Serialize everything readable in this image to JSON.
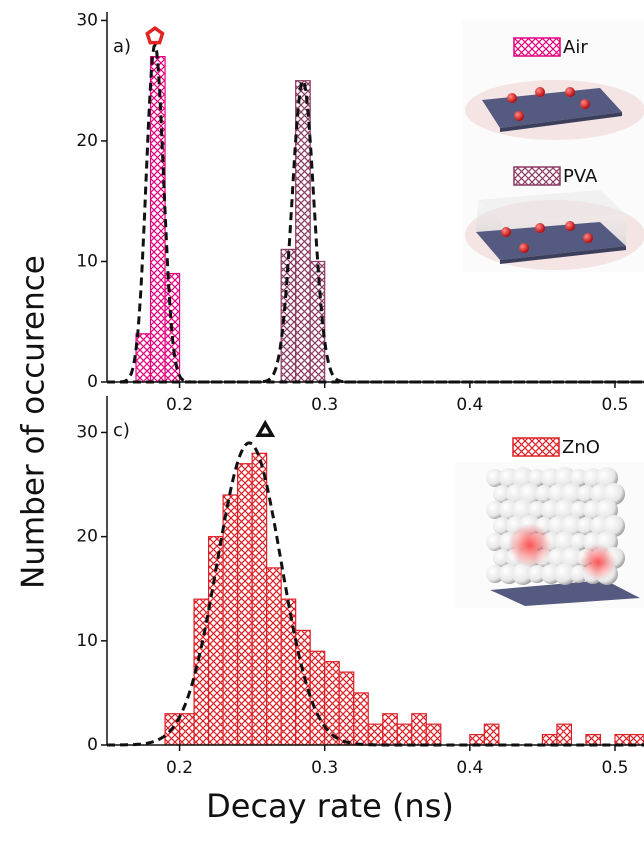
{
  "chart_data": [
    {
      "type": "histogram",
      "panel_label": "a)",
      "ylabel": "Number of occurence",
      "xlim": [
        0.15,
        0.52
      ],
      "ylim": [
        0,
        30.7
      ],
      "xticks": [
        0.2,
        0.3,
        0.4,
        0.5
      ],
      "yticks": [
        0,
        10,
        20,
        30
      ],
      "series": [
        {
          "name": "Air",
          "color": "#e5007e",
          "bins": [
            0.17,
            0.18,
            0.19,
            0.2
          ],
          "values": [
            4,
            27,
            9
          ],
          "fit": {
            "center": 0.183,
            "height": 28,
            "width": 0.006
          }
        },
        {
          "name": "PVA",
          "color": "#8c3b62",
          "bins": [
            0.27,
            0.28,
            0.29,
            0.3
          ],
          "values": [
            11,
            25,
            10
          ],
          "fit": {
            "center": 0.285,
            "height": 25,
            "width": 0.0075
          }
        }
      ],
      "markers": [
        {
          "shape": "pentagon",
          "x": 0.183,
          "y": 28.7,
          "color": "#e02424"
        }
      ]
    },
    {
      "type": "histogram",
      "panel_label": "c)",
      "xlabel": "Decay rate (ns)",
      "xlim": [
        0.15,
        0.52
      ],
      "ylim": [
        0,
        33.5
      ],
      "xticks": [
        0.2,
        0.3,
        0.4,
        0.5
      ],
      "yticks": [
        0,
        10,
        20,
        30
      ],
      "series": [
        {
          "name": "ZnO",
          "color": "#dc2026",
          "bins": [
            0.19,
            0.2,
            0.21,
            0.22,
            0.23,
            0.24,
            0.25,
            0.26,
            0.27,
            0.28,
            0.29,
            0.3,
            0.31,
            0.32,
            0.33,
            0.34,
            0.35,
            0.36,
            0.37,
            0.38,
            0.39,
            0.4,
            0.41,
            0.42,
            0.43,
            0.44,
            0.45,
            0.46,
            0.47,
            0.48,
            0.49,
            0.5,
            0.51,
            0.52
          ],
          "values": [
            3,
            3,
            14,
            20,
            24,
            27,
            28,
            17,
            14,
            11,
            9,
            8,
            7,
            5,
            2,
            3,
            2,
            3,
            2,
            0,
            0,
            1,
            2,
            0,
            0,
            0,
            1,
            2,
            0,
            1,
            0,
            1,
            1
          ],
          "fit": {
            "center": 0.248,
            "height": 29,
            "width": 0.022
          }
        }
      ],
      "markers": [
        {
          "shape": "triangle",
          "x": 0.259,
          "y": 30.3,
          "color": "#111111"
        }
      ]
    }
  ]
}
